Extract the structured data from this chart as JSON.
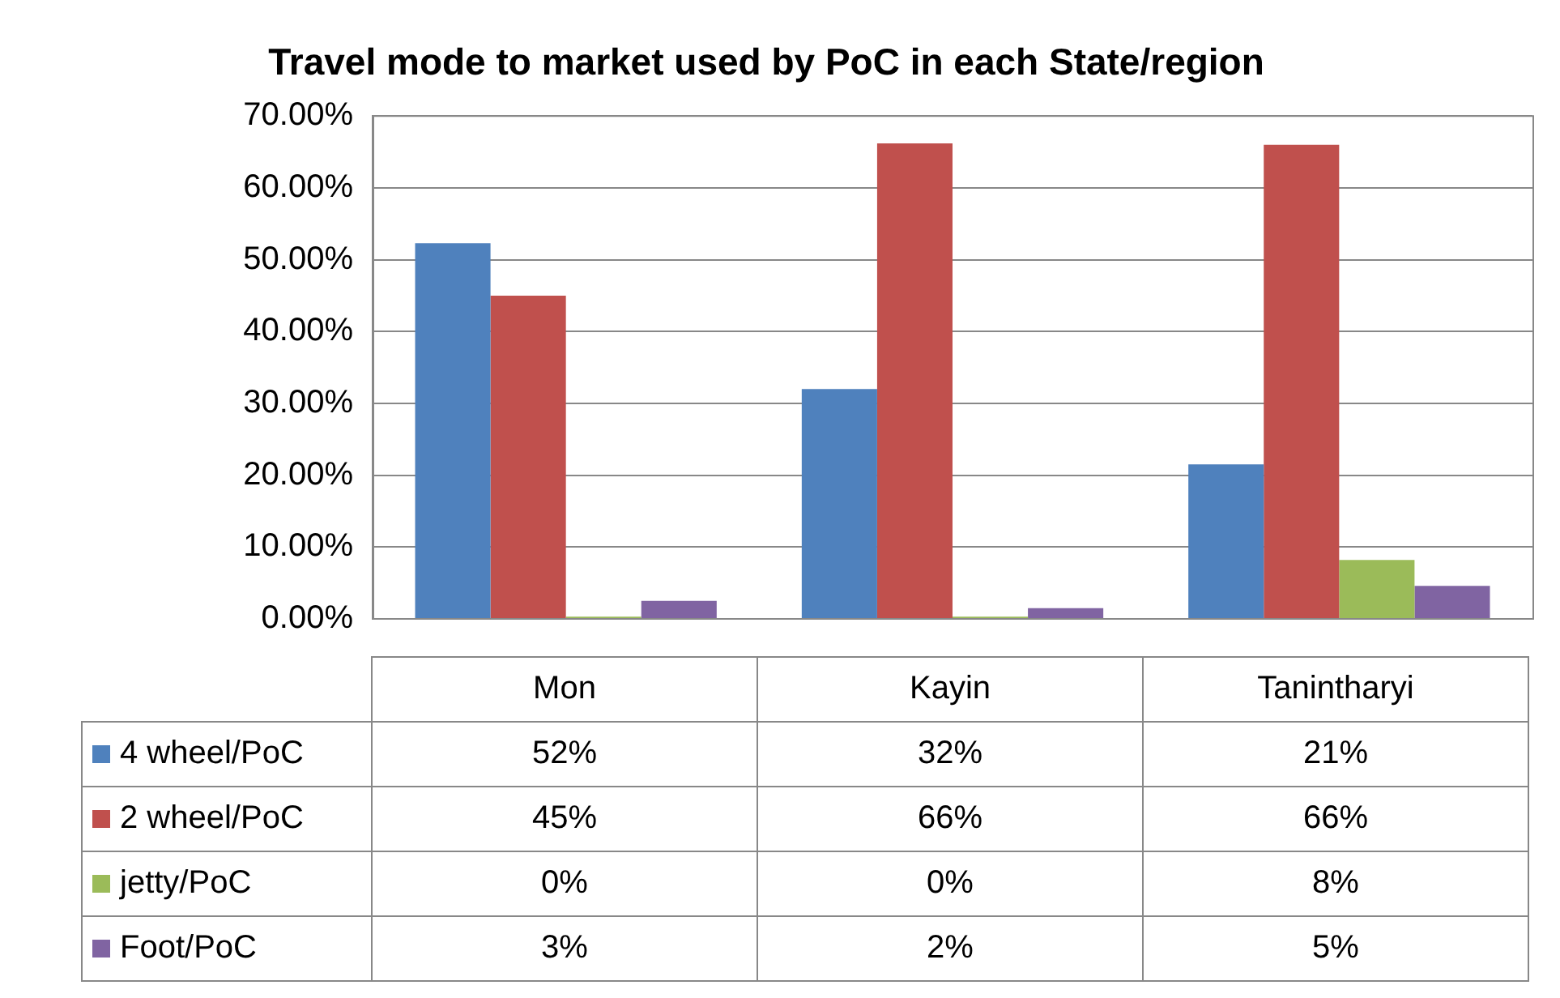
{
  "chart_data": {
    "type": "bar",
    "title": "Travel mode to market used by PoC in each State/region",
    "categories": [
      "Mon",
      "Kayin",
      "Tanintharyi"
    ],
    "series": [
      {
        "name": "4 wheel/PoC",
        "color": "#4f81bd",
        "values": [
          52.3,
          32,
          21.5
        ],
        "value_labels": [
          "52%",
          "32%",
          "21%"
        ]
      },
      {
        "name": "2 wheel/PoC",
        "color": "#c0504d",
        "values": [
          45,
          66.2,
          66
        ],
        "value_labels": [
          "45%",
          "66%",
          "66%"
        ]
      },
      {
        "name": "jetty/PoC",
        "color": "#9bbb59",
        "values": [
          0.3,
          0.3,
          8.2
        ],
        "value_labels": [
          "0%",
          "0%",
          "8%"
        ]
      },
      {
        "name": "Foot/PoC",
        "color": "#8064a2",
        "values": [
          2.5,
          1.5,
          4.6
        ],
        "value_labels": [
          "3%",
          "2%",
          "5%"
        ]
      }
    ],
    "ylim": [
      0,
      70
    ],
    "yticks": [
      {
        "value": 0,
        "label": "0.00%"
      },
      {
        "value": 10,
        "label": "10.00%"
      },
      {
        "value": 20,
        "label": "20.00%"
      },
      {
        "value": 30,
        "label": "30.00%"
      },
      {
        "value": 40,
        "label": "40.00%"
      },
      {
        "value": 50,
        "label": "50.00%"
      },
      {
        "value": 60,
        "label": "60.00%"
      },
      {
        "value": 70,
        "label": "70.00%"
      }
    ],
    "grid": "y",
    "legend": "bottom"
  }
}
